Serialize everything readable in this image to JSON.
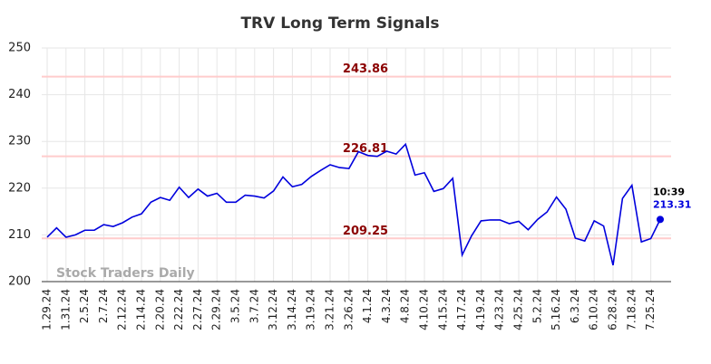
{
  "chart_data": {
    "type": "line",
    "title": "TRV Long Term Signals",
    "categories": [
      "1.29.24",
      null,
      "1.31.24",
      null,
      "2.5.24",
      null,
      "2.7.24",
      null,
      "2.12.24",
      null,
      "2.14.24",
      null,
      "2.20.24",
      null,
      "2.22.24",
      null,
      "2.27.24",
      null,
      "2.29.24",
      null,
      "3.5.24",
      null,
      "3.7.24",
      null,
      "3.12.24",
      null,
      "3.14.24",
      null,
      "3.19.24",
      null,
      "3.21.24",
      null,
      "3.26.24",
      null,
      "4.1.24",
      null,
      "4.3.24",
      null,
      "4.8.24",
      null,
      "4.10.24",
      null,
      "4.15.24",
      null,
      "4.17.24",
      null,
      "4.19.24",
      null,
      "4.23.24",
      null,
      "4.25.24",
      null,
      "5.2.24",
      null,
      "5.16.24",
      null,
      "6.3.24",
      null,
      "6.10.24",
      null,
      "6.28.24",
      null,
      "7.18.24",
      null,
      "7.25.24",
      null
    ],
    "series": [
      {
        "name": "TRV",
        "color": "#0000dd",
        "values": [
          209.5,
          211.5,
          209.5,
          210,
          211,
          211,
          212.2,
          211.8,
          212.6,
          213.8,
          214.5,
          217,
          218,
          217.4,
          220.2,
          218,
          219.8,
          218.3,
          218.9,
          217,
          217,
          218.5,
          218.3,
          217.9,
          219.4,
          222.4,
          220.3,
          220.8,
          222.5,
          223.8,
          225,
          224.4,
          224.2,
          227.8,
          227,
          226.8,
          227.9,
          227.3,
          229.4,
          222.8,
          223.3,
          219.3,
          219.9,
          222.1,
          205.7,
          209.8,
          213,
          213.2,
          213.2,
          212.4,
          212.9,
          211.1,
          213.3,
          214.9,
          218.1,
          215.5,
          209.3,
          208.7,
          213,
          211.9,
          203.5,
          217.8,
          220.6,
          208.5,
          209.2,
          213.31
        ]
      }
    ],
    "hlines": [
      243.86,
      226.81,
      209.25
    ],
    "hline_color": "#ffcccc",
    "hline_label_color": "#8b0000",
    "last_time_label": "10:39",
    "watermark": "Stock Traders Daily",
    "ylim": [
      200,
      250
    ],
    "yticks": [
      200,
      210,
      220,
      230,
      240,
      250
    ],
    "grid": true
  }
}
